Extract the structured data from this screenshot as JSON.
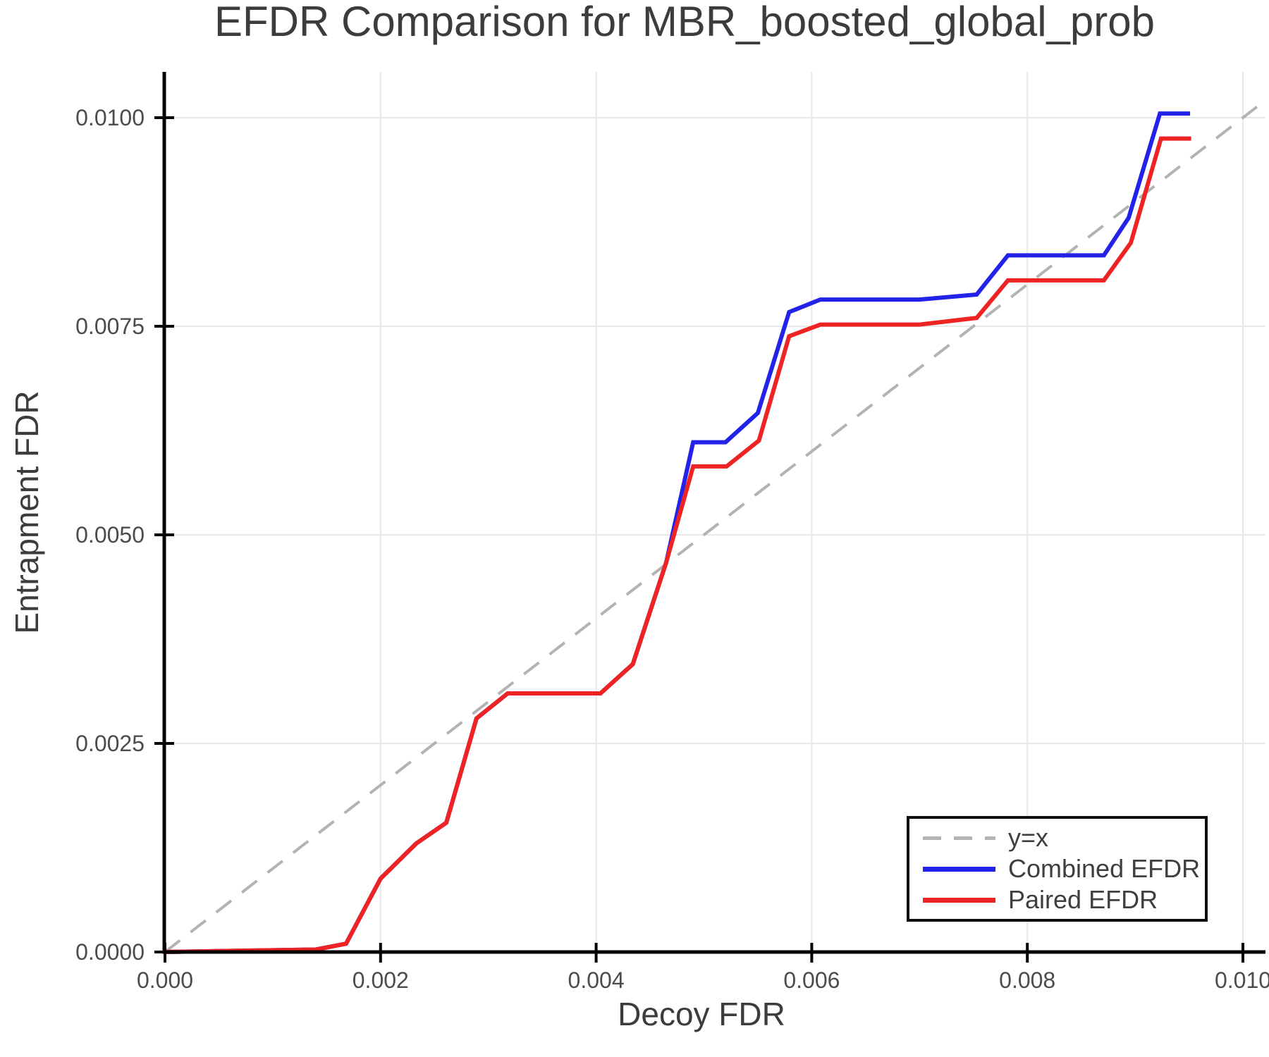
{
  "chart_data": {
    "type": "line",
    "title": "EFDR Comparison for MBR_boosted_global_prob",
    "xlabel": "Decoy FDR",
    "ylabel": "Entrapment FDR",
    "xlim": [
      0.0,
      0.01021
    ],
    "ylim": [
      0.0,
      0.01055
    ],
    "grid": true,
    "legend_position": "lower right",
    "background_color": "#ffffff",
    "grid_color": "#e8e8e8",
    "spine_color": "#000000",
    "title_color": "#3c3c3c",
    "tick_text_color": "#4c4c4c",
    "legend_border_color": "#0d0d0d",
    "x_ticks": {
      "values": [
        0.0,
        0.002,
        0.004,
        0.006,
        0.008,
        0.01
      ],
      "labels": [
        "0.000",
        "0.002",
        "0.004",
        "0.006",
        "0.008",
        "0.010"
      ]
    },
    "y_ticks": {
      "values": [
        0.0,
        0.0025,
        0.005,
        0.0075,
        0.01
      ],
      "labels": [
        "0.0000",
        "0.0025",
        "0.0050",
        "0.0075",
        "0.0100"
      ]
    },
    "series": [
      {
        "name": "y=x",
        "color": "#b3b3b3",
        "line_style": "dashed",
        "line_width": 4,
        "x": [
          0.0,
          0.01021
        ],
        "y": [
          0.0,
          0.01021
        ]
      },
      {
        "name": "Combined EFDR",
        "color": "#2222e8",
        "line_style": "solid",
        "line_width": 6,
        "x": [
          0.0,
          0.0014,
          0.00168,
          0.002,
          0.00233,
          0.00261,
          0.00289,
          0.00318,
          0.00404,
          0.00434,
          0.00465,
          0.0049,
          0.0052,
          0.0055,
          0.00579,
          0.00608,
          0.007,
          0.00753,
          0.00782,
          0.00871,
          0.00894,
          0.00923,
          0.00951
        ],
        "y": [
          0.0,
          3e-05,
          0.0001,
          0.00088,
          0.0013,
          0.00155,
          0.0028,
          0.0031,
          0.0031,
          0.00345,
          0.00467,
          0.00611,
          0.00611,
          0.00646,
          0.00767,
          0.00782,
          0.00782,
          0.00788,
          0.00835,
          0.00835,
          0.0088,
          0.01005,
          0.01005
        ]
      },
      {
        "name": "Paired EFDR",
        "color": "#ee2424",
        "line_style": "solid",
        "line_width": 6,
        "x": [
          0.0,
          0.0014,
          0.00168,
          0.002,
          0.00233,
          0.00261,
          0.00289,
          0.00318,
          0.00404,
          0.00434,
          0.00465,
          0.0049,
          0.00521,
          0.00551,
          0.00579,
          0.00608,
          0.007,
          0.00753,
          0.00782,
          0.00871,
          0.00896,
          0.00924,
          0.00952
        ],
        "y": [
          0.0,
          3e-05,
          0.0001,
          0.00088,
          0.0013,
          0.00155,
          0.0028,
          0.0031,
          0.0031,
          0.00345,
          0.00467,
          0.00582,
          0.00582,
          0.00613,
          0.00738,
          0.00752,
          0.00752,
          0.0076,
          0.00805,
          0.00805,
          0.0085,
          0.00975,
          0.00975
        ]
      }
    ]
  }
}
